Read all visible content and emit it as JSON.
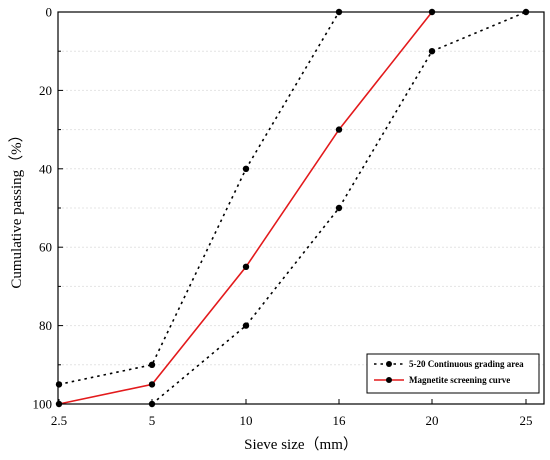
{
  "chart_data": {
    "type": "line",
    "xlabel": "Sieve size（mm）",
    "ylabel": "Cumulative passing（%）",
    "x_ticks": [
      "2.5",
      "5",
      "10",
      "16",
      "20",
      "25"
    ],
    "y_ticks": [
      "0",
      "20",
      "40",
      "60",
      "80",
      "100"
    ],
    "ylim": [
      0,
      100
    ],
    "y_inverted": true,
    "grid": true,
    "legend_position": "bottom-right",
    "series": [
      {
        "name": "5-20 Continuous grading area",
        "style": "dotted",
        "color": "#000000",
        "groups": [
          {
            "x": [
              "2.5",
              "5",
              "10",
              "16"
            ],
            "y": [
              95,
              90,
              40,
              0
            ]
          },
          {
            "x": [
              "5",
              "10",
              "16",
              "20",
              "25"
            ],
            "y": [
              100,
              80,
              50,
              10,
              0
            ]
          }
        ]
      },
      {
        "name": "Magnetite screening curve",
        "style": "solid",
        "color": "#e31a1c",
        "groups": [
          {
            "x": [
              "2.5",
              "5",
              "10",
              "16",
              "20"
            ],
            "y": [
              100,
              95,
              65,
              30,
              0
            ]
          }
        ]
      }
    ]
  }
}
